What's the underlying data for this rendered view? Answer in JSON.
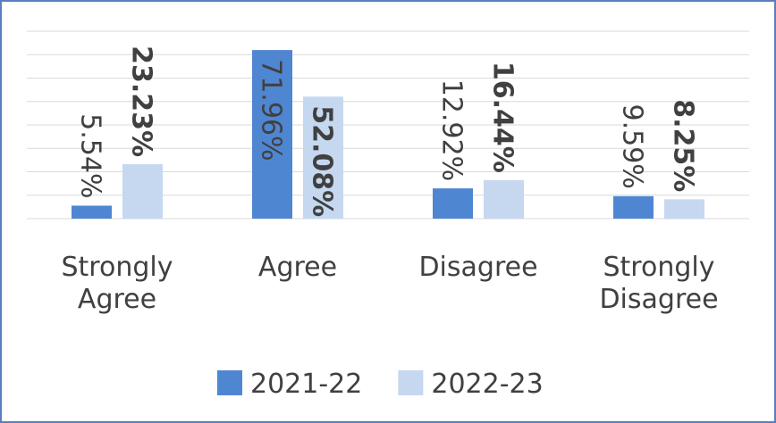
{
  "chart_data": {
    "type": "bar",
    "categories": [
      "Strongly Agree",
      "Agree",
      "Disagree",
      "Strongly Disagree"
    ],
    "series": [
      {
        "name": "2021-22",
        "color": "#4f86d2",
        "values": [
          5.54,
          71.96,
          12.92,
          9.59
        ],
        "value_labels": [
          "5.54%",
          "71.96%",
          "12.92%",
          "9.59%"
        ]
      },
      {
        "name": "2022-23",
        "color": "#c5d8f0",
        "values": [
          23.23,
          52.08,
          16.44,
          8.25
        ],
        "value_labels": [
          "23.23%",
          "52.08%",
          "16.44%",
          "8.25%"
        ]
      }
    ],
    "ylim": [
      0,
      80
    ],
    "yticks": [
      0,
      10,
      20,
      30,
      40,
      50,
      60,
      70,
      80
    ],
    "grid": true,
    "legend": "bottom"
  }
}
